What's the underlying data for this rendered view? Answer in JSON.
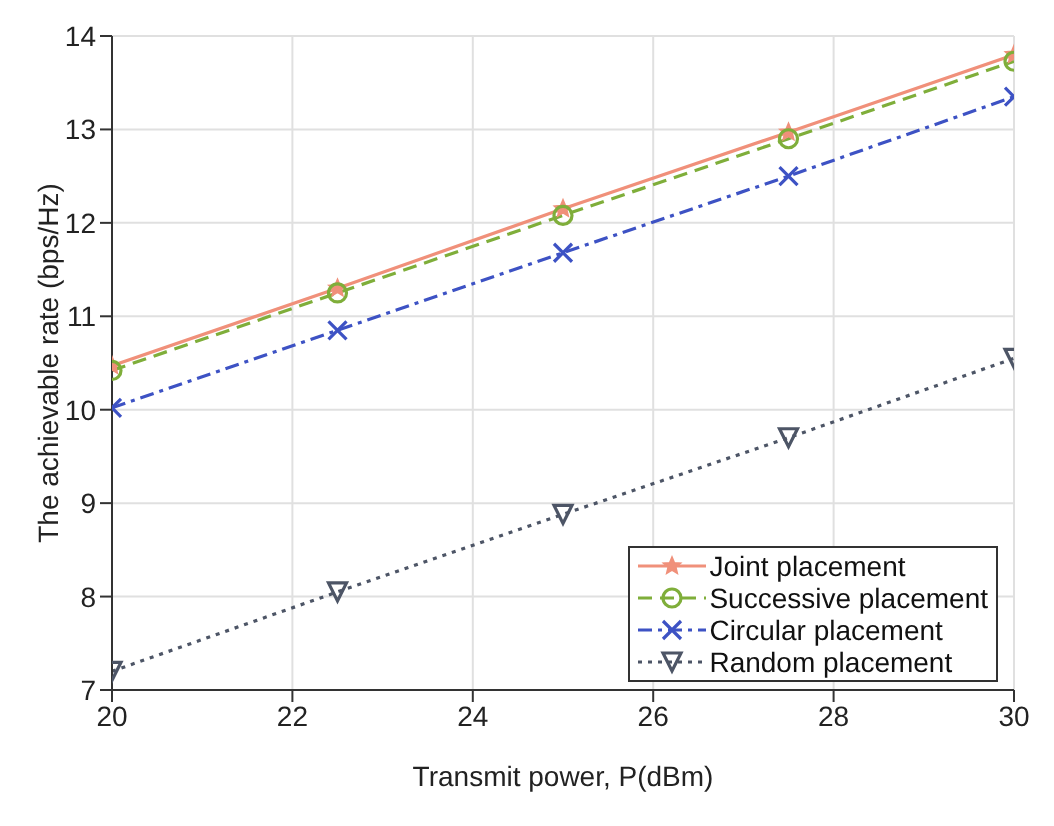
{
  "chart_data": {
    "type": "line",
    "xlabel": "Transmit power, P(dBm)",
    "ylabel": "The achievable rate (bps/Hz)",
    "x": [
      20,
      22.5,
      25,
      27.5,
      30
    ],
    "xlim": [
      20,
      30
    ],
    "xticks": [
      20,
      22,
      24,
      26,
      28,
      30
    ],
    "ylim": [
      7,
      14
    ],
    "yticks": [
      7,
      8,
      9,
      10,
      11,
      12,
      13,
      14
    ],
    "grid": true,
    "legend": "bottom right",
    "series": [
      {
        "name": "Joint placement",
        "color": "#f0907a",
        "marker": "star",
        "line_style": "solid",
        "values": [
          10.47,
          11.3,
          12.15,
          12.97,
          13.8
        ]
      },
      {
        "name": "Successive placement",
        "color": "#7fae3a",
        "marker": "circle",
        "line_style": "dashed",
        "values": [
          10.42,
          11.25,
          12.08,
          12.9,
          13.73
        ]
      },
      {
        "name": "Circular placement",
        "color": "#3d52c4",
        "marker": "cross",
        "line_style": "dashdot",
        "values": [
          10.02,
          10.85,
          11.68,
          12.5,
          13.35
        ]
      },
      {
        "name": "Random placement",
        "color": "#4d5566",
        "marker": "triangle",
        "line_style": "dotted",
        "values": [
          7.2,
          8.05,
          8.88,
          9.7,
          10.55
        ]
      }
    ]
  }
}
